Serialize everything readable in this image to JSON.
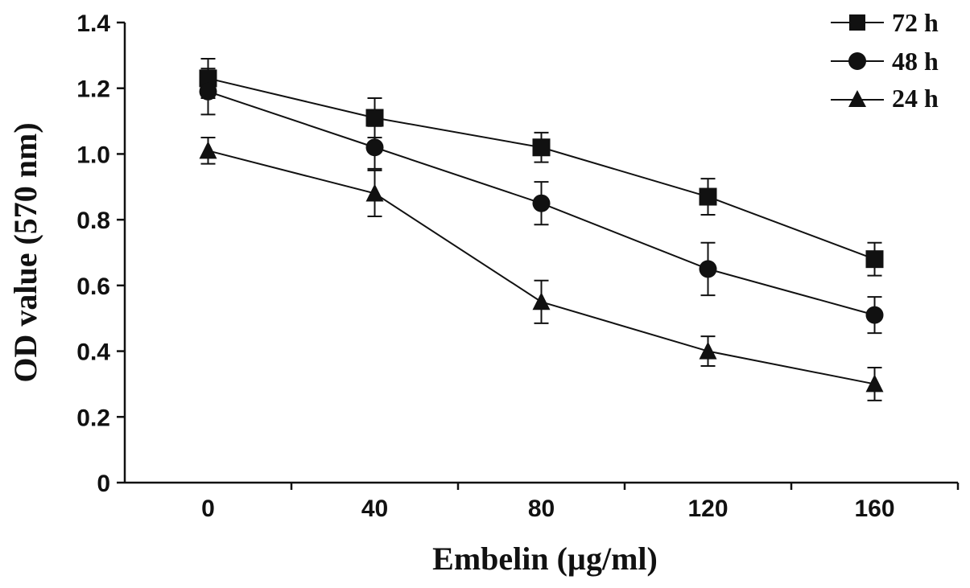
{
  "chart_data": {
    "type": "line",
    "xlabel": "Embelin (µg/ml)",
    "ylabel": "OD value (570 nm)",
    "x": [
      0,
      40,
      80,
      120,
      160
    ],
    "x_tick_labels": [
      "0",
      "40",
      "80",
      "120",
      "160"
    ],
    "y_tick_labels": [
      "0",
      "0.2",
      "0.4",
      "0.6",
      "0.8",
      "1.0",
      "1.2",
      "1.4"
    ],
    "ylim": [
      0,
      1.4
    ],
    "grid": false,
    "legend_position": "top-right",
    "series": [
      {
        "name": "72 h",
        "marker": "square",
        "values": [
          1.23,
          1.11,
          1.02,
          0.87,
          0.68
        ],
        "errors": [
          0.06,
          0.06,
          0.045,
          0.055,
          0.05
        ]
      },
      {
        "name": "48 h",
        "marker": "circle",
        "values": [
          1.19,
          1.02,
          0.85,
          0.65,
          0.51
        ],
        "errors": [
          0.07,
          0.065,
          0.065,
          0.08,
          0.055
        ]
      },
      {
        "name": "24 h",
        "marker": "triangle",
        "values": [
          1.01,
          0.88,
          0.55,
          0.4,
          0.3
        ],
        "errors": [
          0.04,
          0.07,
          0.065,
          0.045,
          0.05
        ]
      }
    ],
    "colors": {
      "line": "#111111",
      "marker": "#111111",
      "axis": "#111111"
    }
  }
}
